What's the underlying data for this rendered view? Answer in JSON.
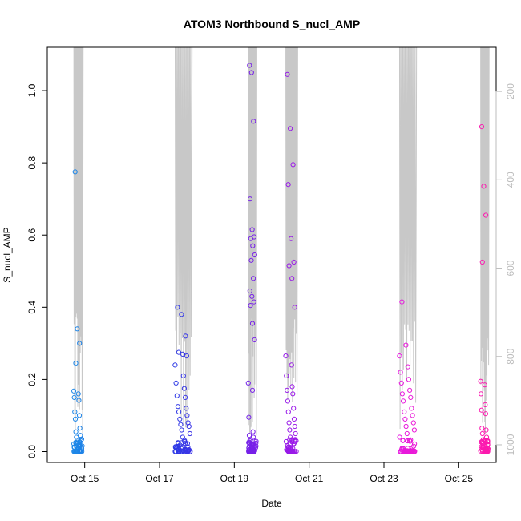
{
  "chart_data": {
    "type": "scatter",
    "title": "ATOM3 Northbound S_nucl_AMP",
    "xlabel": "Date",
    "ylabel": "S_nucl_AMP",
    "xlim": [
      "2023-10-14",
      "2023-10-26"
    ],
    "ylim": [
      -0.03,
      1.12
    ],
    "x_ticks": [
      {
        "date": "2023-10-15",
        "label": "Oct 15"
      },
      {
        "date": "2023-10-17",
        "label": "Oct 17"
      },
      {
        "date": "2023-10-19",
        "label": "Oct 19"
      },
      {
        "date": "2023-10-21",
        "label": "Oct 21"
      },
      {
        "date": "2023-10-23",
        "label": "Oct 23"
      },
      {
        "date": "2023-10-25",
        "label": "Oct 25"
      }
    ],
    "y_ticks": [
      0.0,
      0.2,
      0.4,
      0.6,
      0.8,
      1.0
    ],
    "y_tick_labels": [
      "0.0",
      "0.2",
      "0.4",
      "0.6",
      "0.8",
      "1.0"
    ],
    "right_axis": {
      "label": "",
      "reversed": true,
      "ticks": [
        200,
        400,
        600,
        800,
        1000
      ],
      "color": "#bdbdbd"
    },
    "point_color_gradient": [
      "#1e9fe8",
      "#1f3fe6",
      "#8a1ae8",
      "#e21ae8",
      "#ff1aa8"
    ],
    "line_color": "#c8c8c8",
    "clusters": [
      {
        "start": "2023-10-14 17:00",
        "end": "2023-10-14 22:30",
        "high": [
          0.775,
          0.34,
          0.3,
          0.245
        ],
        "mid": [
          0.168,
          0.16,
          0.15,
          0.142,
          0.11,
          0.1,
          0.09,
          0.065,
          0.055,
          0.045,
          0.04,
          0.03
        ]
      },
      {
        "start": "2023-10-17 10:00",
        "end": "2023-10-17 20:00",
        "high": [
          0.4,
          0.38,
          0.32,
          0.275,
          0.27,
          0.265
        ],
        "mid": [
          0.24,
          0.21,
          0.19,
          0.175,
          0.155,
          0.15,
          0.125,
          0.12,
          0.11,
          0.1,
          0.09,
          0.08,
          0.075,
          0.07,
          0.06,
          0.05,
          0.04
        ]
      },
      {
        "start": "2023-10-19 09:00",
        "end": "2023-10-19 14:00",
        "high": [
          1.07,
          1.05,
          0.915,
          0.7,
          0.615,
          0.595,
          0.59,
          0.57,
          0.545,
          0.53,
          0.48,
          0.445,
          0.43,
          0.415,
          0.405,
          0.355,
          0.31
        ],
        "mid": [
          0.19,
          0.17,
          0.095,
          0.055,
          0.045,
          0.04,
          0.03
        ]
      },
      {
        "start": "2023-10-20 09:00",
        "end": "2023-10-20 16:00",
        "high": [
          1.045,
          0.895,
          0.795,
          0.74,
          0.59,
          0.525,
          0.515,
          0.48,
          0.4
        ],
        "mid": [
          0.265,
          0.24,
          0.21,
          0.18,
          0.17,
          0.16,
          0.14,
          0.12,
          0.11,
          0.09,
          0.08,
          0.07,
          0.06,
          0.05,
          0.04,
          0.03
        ]
      },
      {
        "start": "2023-10-23 10:00",
        "end": "2023-10-23 20:00",
        "high": [
          0.415,
          0.295
        ],
        "mid": [
          0.265,
          0.235,
          0.22,
          0.2,
          0.19,
          0.17,
          0.16,
          0.15,
          0.14,
          0.12,
          0.11,
          0.1,
          0.09,
          0.08,
          0.07,
          0.06,
          0.05,
          0.04,
          0.03
        ]
      },
      {
        "start": "2023-10-25 14:00",
        "end": "2023-10-25 19:00",
        "high": [
          0.9,
          0.735,
          0.655,
          0.525
        ],
        "mid": [
          0.195,
          0.185,
          0.16,
          0.13,
          0.115,
          0.105,
          0.065,
          0.06,
          0.05,
          0.04
        ]
      }
    ]
  }
}
